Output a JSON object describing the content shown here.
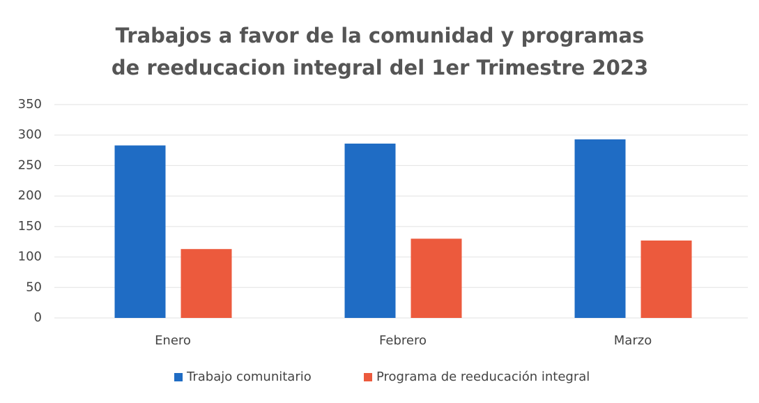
{
  "chart_data": {
    "type": "bar",
    "title": "Trabajos a favor de la comunidad y programas de reeducacion integral del 1er Trimestre 2023",
    "categories": [
      "Enero",
      "Febrero",
      "Marzo"
    ],
    "series": [
      {
        "name": "Trabajo comunitario",
        "color": "#1f6cc4",
        "values": [
          283,
          286,
          293
        ]
      },
      {
        "name": "Programa de reeducación integral",
        "color": "#ec5a3d",
        "values": [
          113,
          130,
          127
        ]
      }
    ],
    "ylim": [
      0,
      350
    ],
    "yticks": [
      0,
      50,
      100,
      150,
      200,
      250,
      300,
      350
    ],
    "grid": true,
    "legend": "bottom"
  }
}
